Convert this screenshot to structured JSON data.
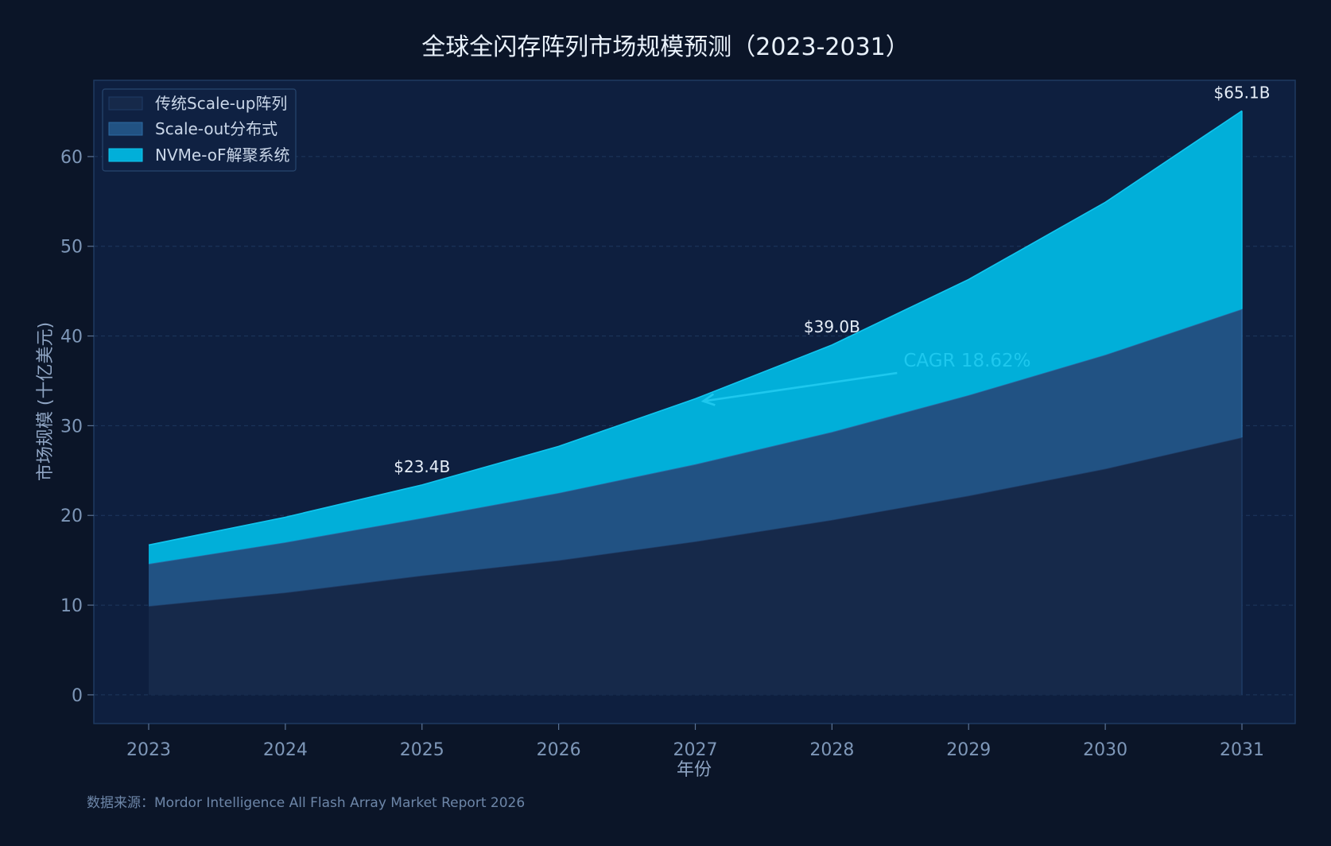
{
  "chart_data": {
    "type": "area",
    "stacked": true,
    "title": "全球全闪存阵列市场规模预测（2023-2031）",
    "xlabel": "年份",
    "ylabel": "市场规模 (十亿美元)",
    "x": [
      "2023",
      "2024",
      "2025",
      "2026",
      "2027",
      "2028",
      "2029",
      "2030",
      "2031"
    ],
    "ylim": [
      -3.2,
      68.5
    ],
    "yticks": [
      "0",
      "10",
      "20",
      "30",
      "40",
      "50",
      "60"
    ],
    "grid": true,
    "legend_position": "top-left",
    "series": [
      {
        "name": "传统Scale-up阵列",
        "color": "#16294a",
        "line_color": "#1f3c66",
        "values": [
          9.9,
          11.4,
          13.3,
          15.0,
          17.1,
          19.5,
          22.2,
          25.2,
          28.7
        ]
      },
      {
        "name": "Scale-out分布式",
        "color": "#215283",
        "line_color": "#2c6aa3",
        "values": [
          4.7,
          5.6,
          6.4,
          7.5,
          8.6,
          9.8,
          11.2,
          12.7,
          14.3
        ]
      },
      {
        "name": "NVMe-oF解聚系统",
        "color": "#01afd9",
        "line_color": "#11c6ef",
        "values": [
          2.1,
          2.8,
          3.7,
          5.2,
          7.3,
          9.7,
          12.9,
          17.0,
          22.1
        ]
      }
    ],
    "totals": [
      16.7,
      19.8,
      23.4,
      27.7,
      33.0,
      39.0,
      46.3,
      54.9,
      65.1
    ],
    "annotations": [
      {
        "x": "2025",
        "total": 23.4,
        "text": "$23.4B"
      },
      {
        "x": "2028",
        "total": 39.0,
        "text": "$39.0B"
      },
      {
        "x": "2031",
        "total": 65.1,
        "text": "$65.1B"
      }
    ],
    "cagr": {
      "text": "CAGR 18.62%",
      "arrow_to_x": "2027",
      "arrow_to_y": 33.0,
      "text_x": 2028.5,
      "text_y": 37.3
    }
  },
  "source": "数据来源：Mordor Intelligence All Flash Array Market Report 2026",
  "colors": {
    "background": "#0b1528",
    "plot_background": "#0e1f3f",
    "plot_border": "#1e3a60",
    "grid": "#23406a",
    "accent": "#1ec8ee"
  }
}
